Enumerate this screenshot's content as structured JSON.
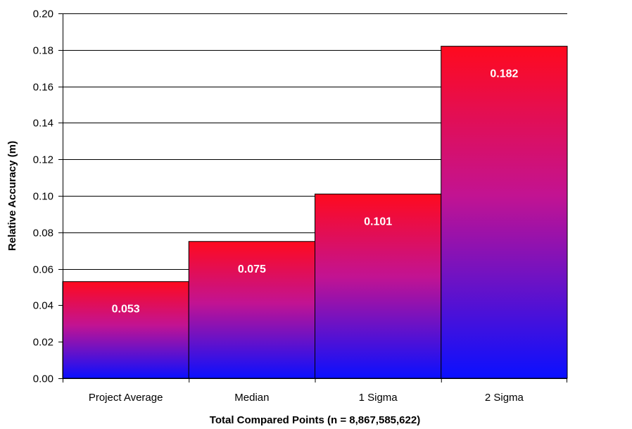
{
  "chart_data": {
    "type": "bar",
    "categories": [
      "Project Average",
      "Median",
      "1 Sigma",
      "2 Sigma"
    ],
    "values": [
      0.053,
      0.075,
      0.101,
      0.182
    ],
    "data_labels": [
      "0.053",
      "0.075",
      "0.101",
      "0.182"
    ],
    "y_ticks": [
      "0.00",
      "0.02",
      "0.04",
      "0.06",
      "0.08",
      "0.10",
      "0.12",
      "0.14",
      "0.16",
      "0.18",
      "0.20"
    ],
    "xlabel": "Total Compared Points (n = 8,867,585,622)",
    "ylabel": "Relative Accuracy (m)",
    "ylim": [
      0,
      0.2
    ],
    "grid": true,
    "legend": "none",
    "bar_gradient": {
      "top": "#ff0a1e",
      "middle": "#c21392",
      "bottom": "#0a10ff"
    }
  }
}
